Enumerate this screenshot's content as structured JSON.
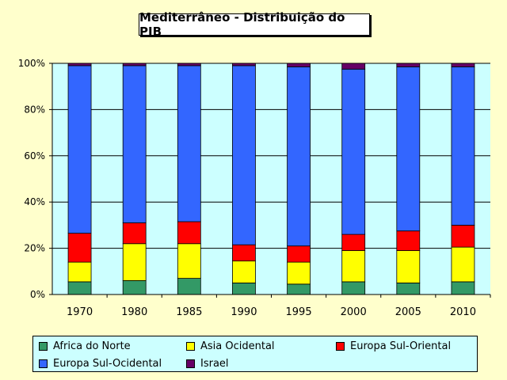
{
  "chart_data": {
    "type": "bar",
    "stacked": true,
    "percent": true,
    "title": "Mediterrâneo - Distribuição do PIB",
    "xlabel": "",
    "ylabel": "",
    "ylim": [
      0,
      100
    ],
    "y_ticks": [
      "0%",
      "20%",
      "40%",
      "60%",
      "80%",
      "100%"
    ],
    "categories": [
      "1970",
      "1980",
      "1985",
      "1990",
      "1995",
      "2000",
      "2005",
      "2010"
    ],
    "series": [
      {
        "name": "Africa do Norte",
        "color": "#339966",
        "values": [
          5.5,
          6,
          7,
          5,
          4.5,
          5.5,
          5,
          5.5
        ]
      },
      {
        "name": "Asia Ocidental",
        "color": "#ffff00",
        "values": [
          8.5,
          16,
          15,
          9.5,
          9.5,
          13.5,
          14,
          15
        ]
      },
      {
        "name": "Europa Sul-Oriental",
        "color": "#ff0000",
        "values": [
          12.5,
          9,
          9.5,
          7,
          7,
          7,
          8.5,
          9.5
        ]
      },
      {
        "name": "Europa Sul-Ocidental",
        "color": "#3366ff",
        "values": [
          72.5,
          68,
          67.5,
          77.5,
          77.5,
          71.5,
          71,
          68.5
        ]
      },
      {
        "name": "Israel",
        "color": "#660066",
        "values": [
          1,
          1,
          1,
          1,
          1.5,
          2.5,
          1.5,
          1.5
        ]
      }
    ],
    "legend_position": "bottom"
  },
  "colors": {
    "plot_background": "#ccffff",
    "page_background": "#ffffcc"
  }
}
